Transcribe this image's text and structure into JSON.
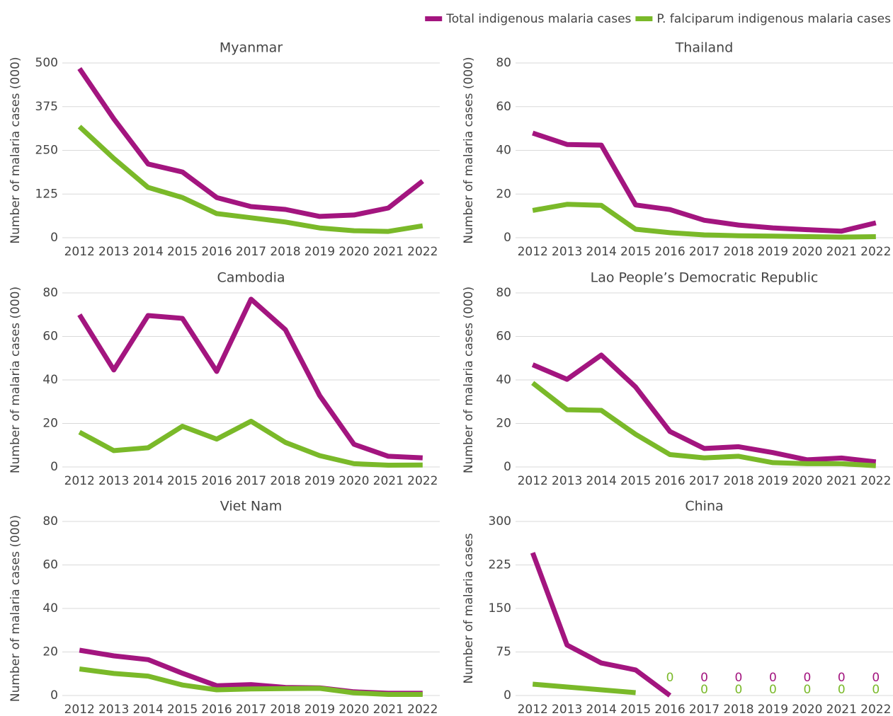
{
  "chart_data": [
    {
      "type": "line",
      "title": "Myanmar",
      "ylabel": "Number of malaria cases (000)",
      "categories": [
        "2012",
        "2013",
        "2014",
        "2015",
        "2016",
        "2017",
        "2018",
        "2019",
        "2020",
        "2021",
        "2022"
      ],
      "ylim": [
        0,
        500
      ],
      "yticks": [
        0,
        125,
        250,
        375,
        500
      ],
      "grid": true,
      "series": [
        {
          "name": "Total indigenous malaria cases",
          "color": "#a3157f",
          "values": [
            484,
            340,
            211,
            188,
            115,
            89,
            81,
            61,
            65,
            85,
            162
          ]
        },
        {
          "name": "P. falciparum indigenous malaria cases",
          "color": "#7ab929",
          "values": [
            318,
            227,
            144,
            115,
            69,
            57,
            45,
            28,
            20,
            18,
            34
          ]
        }
      ]
    },
    {
      "type": "line",
      "title": "Thailand",
      "ylabel": "Number of malaria cases (000)",
      "categories": [
        "2012",
        "2013",
        "2014",
        "2015",
        "2016",
        "2017",
        "2018",
        "2019",
        "2020",
        "2021",
        "2022"
      ],
      "ylim": [
        0,
        80
      ],
      "yticks": [
        0,
        20,
        40,
        60,
        80
      ],
      "grid": true,
      "series": [
        {
          "color": "#a3157f",
          "values": [
            47.9,
            42.7,
            42.4,
            15,
            12.9,
            8,
            5.8,
            4.5,
            3.7,
            3,
            6.8
          ]
        },
        {
          "color": "#7ab929",
          "values": [
            12.5,
            15.3,
            14.8,
            3.9,
            2.3,
            1.3,
            0.9,
            0.7,
            0.5,
            0.3,
            0.5
          ]
        }
      ]
    },
    {
      "type": "line",
      "title": "Cambodia",
      "ylabel": "Number of malaria cases (000)",
      "categories": [
        "2012",
        "2013",
        "2014",
        "2015",
        "2016",
        "2017",
        "2018",
        "2019",
        "2020",
        "2021",
        "2022"
      ],
      "ylim": [
        0,
        80
      ],
      "yticks": [
        0,
        20,
        40,
        60,
        80
      ],
      "grid": true,
      "series": [
        {
          "color": "#a3157f",
          "values": [
            70,
            44.6,
            69.6,
            68.3,
            43.9,
            77.1,
            63.1,
            32.8,
            10.4,
            4.9,
            4.2
          ]
        },
        {
          "color": "#7ab929",
          "values": [
            16,
            7.5,
            8.8,
            18.7,
            12.8,
            21,
            11.3,
            5.2,
            1.5,
            0.8,
            0.9
          ]
        }
      ]
    },
    {
      "type": "line",
      "title": "Lao People’s Democratic Republic",
      "ylabel": "Number of malaria cases (000)",
      "categories": [
        "2012",
        "2013",
        "2014",
        "2015",
        "2016",
        "2017",
        "2018",
        "2019",
        "2020",
        "2021",
        "2022"
      ],
      "ylim": [
        0,
        80
      ],
      "yticks": [
        0,
        20,
        40,
        60,
        80
      ],
      "grid": true,
      "series": [
        {
          "color": "#a3157f",
          "values": [
            47,
            40.3,
            51.4,
            36.7,
            16.3,
            8.5,
            9.3,
            6.6,
            3.3,
            4.1,
            2.3
          ]
        },
        {
          "color": "#7ab929",
          "values": [
            38.6,
            26.3,
            26,
            15,
            5.7,
            4.2,
            4.9,
            2,
            1.5,
            1.5,
            0.6
          ]
        }
      ]
    },
    {
      "type": "line",
      "title": "Viet Nam",
      "ylabel": "Number of malaria cases (000)",
      "categories": [
        "2012",
        "2013",
        "2014",
        "2015",
        "2016",
        "2017",
        "2018",
        "2019",
        "2020",
        "2021",
        "2022"
      ],
      "ylim": [
        0,
        80
      ],
      "yticks": [
        0,
        20,
        40,
        60,
        80
      ],
      "grid": true,
      "series": [
        {
          "color": "#a3157f",
          "values": [
            20.8,
            18.2,
            16.5,
            10.2,
            4.5,
            5,
            3.7,
            3.5,
            1.7,
            1,
            1
          ]
        },
        {
          "color": "#7ab929",
          "values": [
            12.2,
            10.1,
            8.9,
            4.8,
            2.6,
            3,
            3.2,
            3.3,
            1.2,
            0.5,
            0.5
          ]
        }
      ]
    },
    {
      "type": "line",
      "title": "China",
      "ylabel": "Number of malaria cases",
      "categories": [
        "2012",
        "2013",
        "2014",
        "2015",
        "2016",
        "2017",
        "2018",
        "2019",
        "2020",
        "2021",
        "2022"
      ],
      "ylim": [
        0,
        300
      ],
      "yticks": [
        0,
        75,
        150,
        225,
        300
      ],
      "grid": true,
      "series": [
        {
          "color": "#a3157f",
          "values": [
            246,
            87,
            56,
            44,
            0,
            0,
            0,
            0,
            0,
            0,
            0
          ],
          "value_labels": [
            null,
            null,
            null,
            null,
            null,
            "0",
            "0",
            "0",
            "0",
            "0",
            "0"
          ]
        },
        {
          "color": "#7ab929",
          "values": [
            19.5,
            14.6,
            9.8,
            4.9,
            0,
            0,
            0,
            0,
            0,
            0,
            0
          ],
          "value_labels": [
            null,
            null,
            null,
            null,
            "0",
            "0",
            "0",
            "0",
            "0",
            "0",
            "0"
          ]
        }
      ]
    }
  ]
}
